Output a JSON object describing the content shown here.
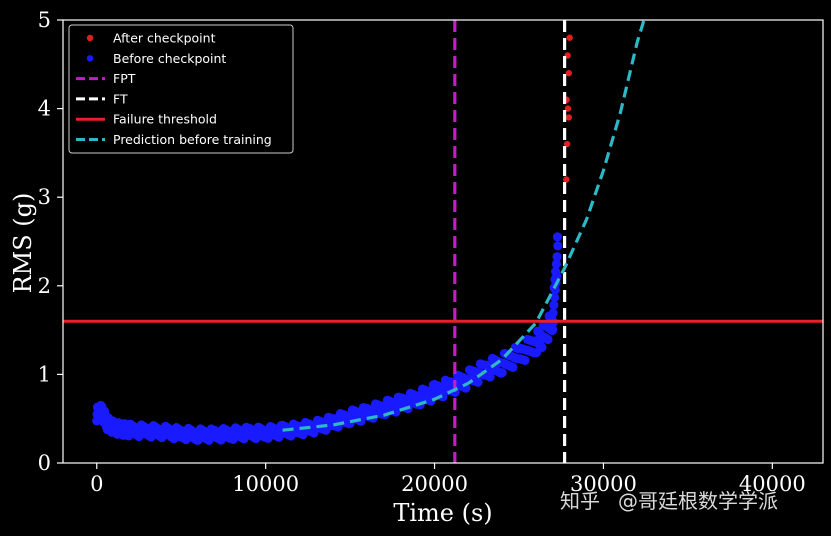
{
  "chart_data": {
    "type": "scatter",
    "xlabel": "Time (s)",
    "ylabel": "RMS (g)",
    "xlim": [
      -2000,
      43000
    ],
    "ylim": [
      0,
      5
    ],
    "xticks": [
      0,
      10000,
      20000,
      30000,
      40000
    ],
    "yticks": [
      0,
      1,
      2,
      3,
      4,
      5
    ],
    "xtick_labels": [
      "0",
      "10000",
      "20000",
      "30000",
      "40000"
    ],
    "ytick_labels": [
      "0",
      "1",
      "2",
      "3",
      "4",
      "5"
    ],
    "grid": false,
    "legend_position": "top-left",
    "legend": [
      {
        "label": "After checkpoint",
        "color": "#e02020",
        "kind": "dot"
      },
      {
        "label": "Before checkpoint",
        "color": "#1a1aff",
        "kind": "dot"
      },
      {
        "label": "FPT",
        "color": "#c21fc2",
        "kind": "dash"
      },
      {
        "label": "FT",
        "color": "#ffffff",
        "kind": "dash"
      },
      {
        "label": "Failure threshold",
        "color": "#e8202a",
        "kind": "solid"
      },
      {
        "label": "Prediction before training",
        "color": "#2eb8c6",
        "kind": "dash"
      }
    ],
    "series": [
      {
        "name": "Before checkpoint",
        "color": "#1a1aff",
        "x": [
          0,
          300,
          600,
          1000,
          1500,
          2000,
          3000,
          4000,
          5000,
          6000,
          7000,
          8000,
          9000,
          10000,
          11000,
          12000,
          13000,
          14000,
          15000,
          16000,
          17000,
          18000,
          19000,
          20000,
          21000,
          22000,
          23000,
          24000,
          25000,
          26000,
          26500,
          27000,
          27300
        ],
        "y": [
          0.55,
          0.58,
          0.45,
          0.4,
          0.38,
          0.37,
          0.36,
          0.35,
          0.33,
          0.32,
          0.32,
          0.33,
          0.34,
          0.34,
          0.36,
          0.38,
          0.41,
          0.46,
          0.52,
          0.56,
          0.62,
          0.67,
          0.73,
          0.8,
          0.87,
          0.95,
          1.05,
          1.12,
          1.22,
          1.35,
          1.45,
          1.6,
          2.45
        ]
      },
      {
        "name": "After checkpoint",
        "color": "#e02020",
        "x": [
          27800,
          27850,
          27900,
          27950,
          28000,
          27820,
          27880,
          27950
        ],
        "y": [
          3.2,
          3.6,
          4.0,
          4.4,
          4.8,
          4.1,
          4.6,
          3.9
        ]
      }
    ],
    "lines": [
      {
        "name": "FPT",
        "orientation": "vertical",
        "x": 21200,
        "color": "#c21fc2",
        "style": "dashed"
      },
      {
        "name": "FT",
        "orientation": "vertical",
        "x": 27700,
        "color": "#ffffff",
        "style": "dashed"
      },
      {
        "name": "Failure threshold",
        "orientation": "horizontal",
        "y": 1.6,
        "color": "#e8202a",
        "style": "solid"
      }
    ],
    "prediction": {
      "name": "Prediction before training",
      "color": "#2eb8c6",
      "style": "dashed",
      "x": [
        11000,
        14000,
        17000,
        20000,
        22000,
        24000,
        26000,
        27700,
        29000,
        30000,
        31000,
        32000,
        32400
      ],
      "y": [
        0.37,
        0.43,
        0.54,
        0.72,
        0.9,
        1.17,
        1.58,
        2.2,
        2.75,
        3.3,
        3.95,
        4.75,
        5.0
      ]
    }
  },
  "watermark": {
    "logo_text": "知乎",
    "text": "@哥廷根数学学派"
  }
}
